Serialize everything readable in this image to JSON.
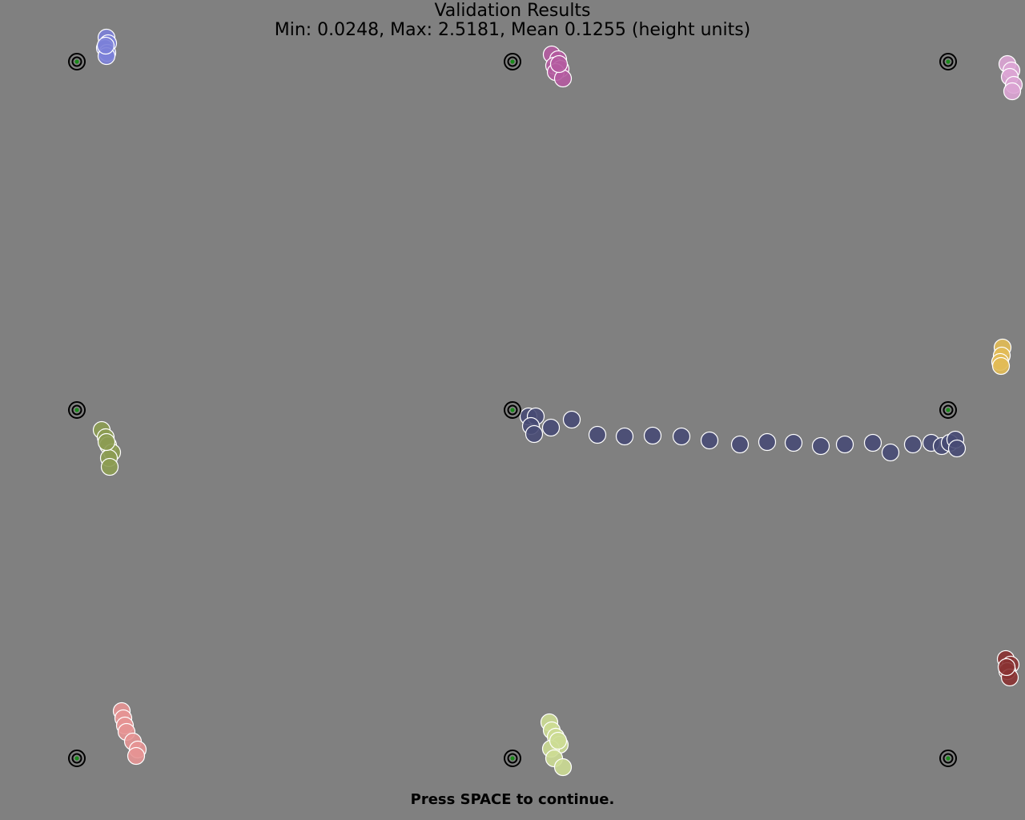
{
  "header": {
    "title": "Validation Results",
    "subtitle": "Min: 0.0248, Max: 2.5181, Mean 0.1255 (height units)"
  },
  "footer": {
    "instruction": "Press SPACE to continue."
  }
}
